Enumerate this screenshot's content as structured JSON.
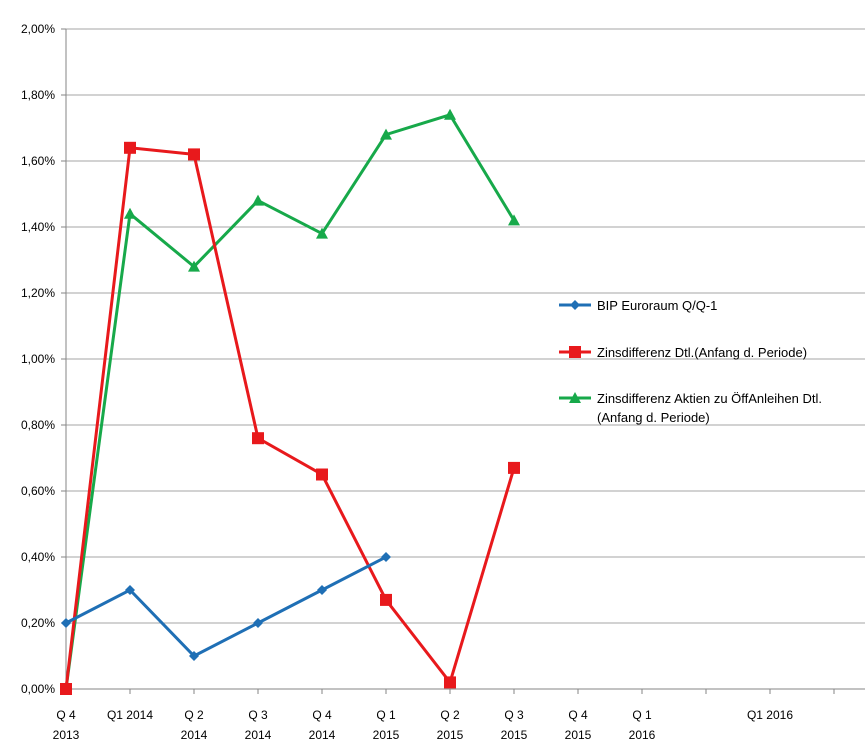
{
  "chart_data": {
    "type": "line",
    "title": "",
    "xlabel": "",
    "ylabel": "",
    "ylim": [
      0,
      2.0
    ],
    "y_ticks": [
      "0,00%",
      "0,20%",
      "0,40%",
      "0,60%",
      "0,80%",
      "1,00%",
      "1,20%",
      "1,40%",
      "1,60%",
      "1,80%",
      "2,00%"
    ],
    "categories": [
      [
        "Q 4",
        "2013"
      ],
      [
        "Q1 2014",
        ""
      ],
      [
        "Q 2",
        "2014"
      ],
      [
        "Q 3",
        "2014"
      ],
      [
        "Q 4",
        "2014"
      ],
      [
        "Q 1",
        "2015"
      ],
      [
        "Q 2",
        "2015"
      ],
      [
        "Q 3",
        "2015"
      ],
      [
        "Q 4",
        "2015"
      ],
      [
        "Q 1",
        "2016"
      ],
      [
        "",
        ""
      ],
      [
        "Q1 2016",
        ""
      ],
      [
        "",
        ""
      ]
    ],
    "grid": true,
    "legend_position": "right",
    "series": [
      {
        "name": "BIP Euroraum Q/Q-1",
        "color": "#1F6FB5",
        "marker": "diamond",
        "values": [
          0.2,
          0.3,
          0.1,
          0.2,
          0.3,
          0.4,
          null,
          null,
          null,
          null,
          null,
          null,
          null
        ]
      },
      {
        "name": "Zinsdifferenz Dtl.(Anfang d.  Periode)",
        "color": "#E8191C",
        "marker": "square",
        "values": [
          0.0,
          1.64,
          1.62,
          0.76,
          0.65,
          0.27,
          0.02,
          0.67,
          null,
          null,
          null,
          null,
          null
        ]
      },
      {
        "name": "Zinsdifferenz Aktien zu ÖffAnleihen Dtl.\n(Anfang d. Periode)",
        "legend_lines": [
          "Zinsdifferenz Aktien zu ÖffAnleihen Dtl.",
          "(Anfang d. Periode)"
        ],
        "color": "#17A94A",
        "marker": "triangle",
        "values": [
          0.0,
          1.44,
          1.28,
          1.48,
          1.38,
          1.68,
          1.74,
          1.42,
          null,
          null,
          null,
          null,
          null
        ]
      }
    ]
  }
}
